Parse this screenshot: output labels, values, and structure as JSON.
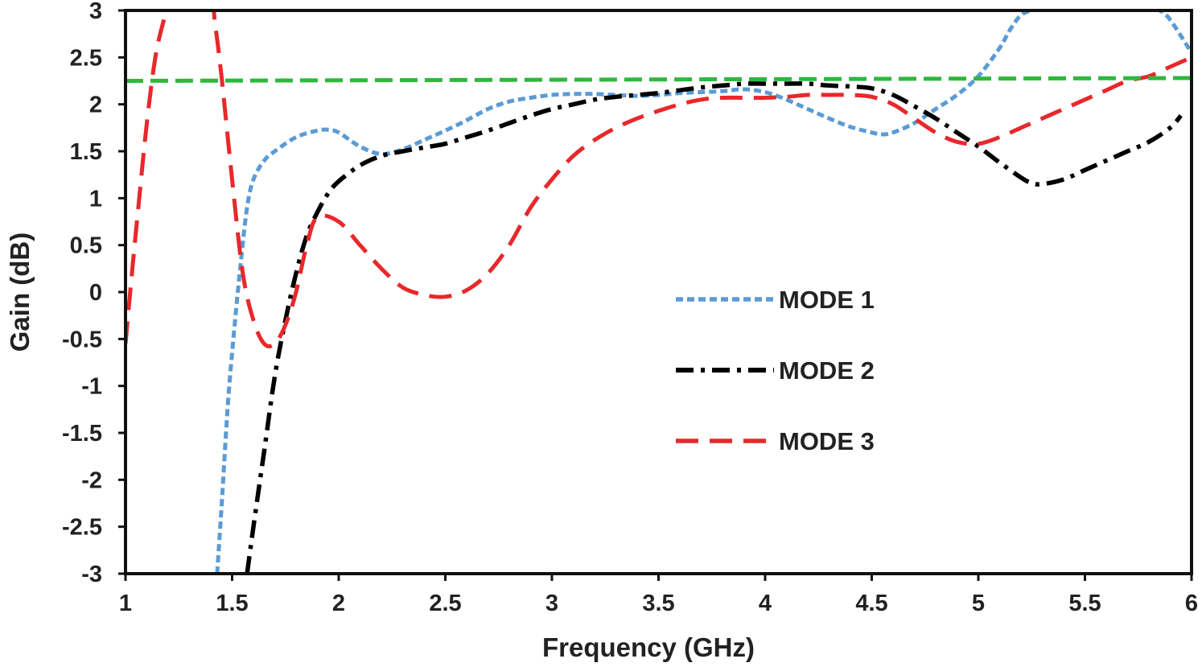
{
  "chart_data": {
    "type": "line",
    "title": "",
    "xlabel": "Frequency (GHz)",
    "ylabel": "Gain (dB)",
    "xlim": [
      1,
      6
    ],
    "ylim": [
      -3,
      3
    ],
    "xticks": [
      "1",
      "1.5",
      "2",
      "2.5",
      "3",
      "3.5",
      "4",
      "4.5",
      "5",
      "5.5",
      "6"
    ],
    "yticks": [
      "3",
      "2.5",
      "2",
      "1.5",
      "1",
      "0.5",
      "0",
      "-0.5",
      "-1",
      "-1.5",
      "-2",
      "-2.5",
      "-3"
    ],
    "grid": false,
    "legend_position": "center-right",
    "series": [
      {
        "name": "MODE 1",
        "color": "#5b9bd5",
        "dash": "dotted-dash",
        "x": [
          1.43,
          1.45,
          1.48,
          1.51,
          1.54,
          1.57,
          1.6,
          1.65,
          1.7,
          1.8,
          1.9,
          1.95,
          2.0,
          2.1,
          2.2,
          2.3,
          2.4,
          2.5,
          2.6,
          2.7,
          2.8,
          2.9,
          3.0,
          3.1,
          3.2,
          3.3,
          3.4,
          3.5,
          3.6,
          3.7,
          3.8,
          3.9,
          4.0,
          4.1,
          4.2,
          4.3,
          4.4,
          4.5,
          4.55,
          4.6,
          4.7,
          4.8,
          4.9,
          5.0,
          5.1,
          5.15,
          5.2,
          5.25,
          5.3,
          5.4,
          5.5,
          5.6,
          5.7,
          5.8,
          5.85,
          5.9,
          6.0
        ],
        "y": [
          -3.0,
          -2.3,
          -1.2,
          -0.4,
          0.3,
          0.9,
          1.2,
          1.4,
          1.5,
          1.65,
          1.72,
          1.73,
          1.7,
          1.55,
          1.47,
          1.52,
          1.62,
          1.72,
          1.83,
          1.95,
          2.03,
          2.07,
          2.1,
          2.11,
          2.11,
          2.1,
          2.09,
          2.1,
          2.12,
          2.13,
          2.14,
          2.16,
          2.13,
          2.05,
          1.95,
          1.85,
          1.76,
          1.7,
          1.68,
          1.7,
          1.8,
          1.95,
          2.1,
          2.3,
          2.6,
          2.8,
          2.95,
          3.0,
          3.02,
          3.02,
          3.02,
          3.02,
          3.02,
          3.02,
          3.0,
          2.9,
          2.55
        ]
      },
      {
        "name": "MODE 2",
        "color": "#000000",
        "dash": "dash-dot",
        "x": [
          1.57,
          1.6,
          1.65,
          1.7,
          1.75,
          1.8,
          1.85,
          1.9,
          1.95,
          2.0,
          2.1,
          2.2,
          2.3,
          2.4,
          2.5,
          2.6,
          2.7,
          2.8,
          2.9,
          3.0,
          3.1,
          3.2,
          3.3,
          3.4,
          3.5,
          3.6,
          3.7,
          3.8,
          3.9,
          4.0,
          4.1,
          4.2,
          4.3,
          4.4,
          4.5,
          4.6,
          4.7,
          4.8,
          4.9,
          5.0,
          5.1,
          5.2,
          5.25,
          5.3,
          5.4,
          5.5,
          5.6,
          5.7,
          5.8,
          5.9,
          5.95
        ],
        "y": [
          -3.0,
          -2.5,
          -1.7,
          -0.9,
          -0.3,
          0.2,
          0.6,
          0.85,
          1.05,
          1.18,
          1.35,
          1.45,
          1.5,
          1.54,
          1.58,
          1.65,
          1.72,
          1.8,
          1.88,
          1.95,
          2.0,
          2.05,
          2.08,
          2.1,
          2.12,
          2.15,
          2.18,
          2.2,
          2.22,
          2.22,
          2.22,
          2.22,
          2.2,
          2.19,
          2.17,
          2.1,
          1.98,
          1.85,
          1.7,
          1.55,
          1.38,
          1.22,
          1.16,
          1.15,
          1.2,
          1.3,
          1.4,
          1.5,
          1.6,
          1.75,
          1.88
        ]
      },
      {
        "name": "MODE 3",
        "color": "#e8282b",
        "dash": "long-dash",
        "x": [
          1.0,
          1.03,
          1.06,
          1.1,
          1.14,
          1.18,
          1.2,
          1.22,
          1.28,
          1.4,
          1.42,
          1.45,
          1.5,
          1.55,
          1.6,
          1.65,
          1.7,
          1.75,
          1.8,
          1.85,
          1.9,
          2.0,
          2.1,
          2.2,
          2.3,
          2.4,
          2.5,
          2.6,
          2.7,
          2.8,
          2.9,
          3.0,
          3.1,
          3.2,
          3.3,
          3.4,
          3.5,
          3.6,
          3.7,
          3.8,
          3.9,
          4.0,
          4.1,
          4.2,
          4.3,
          4.4,
          4.5,
          4.6,
          4.7,
          4.8,
          4.9,
          5.0,
          5.1,
          5.2,
          5.3,
          5.4,
          5.5,
          5.6,
          5.7,
          5.8,
          5.9,
          6.0
        ],
        "y": [
          -0.55,
          0.2,
          0.9,
          1.8,
          2.5,
          2.9,
          3.02,
          3.02,
          3.02,
          3.02,
          2.85,
          2.3,
          1.2,
          0.2,
          -0.3,
          -0.55,
          -0.55,
          -0.35,
          0.0,
          0.5,
          0.8,
          0.75,
          0.5,
          0.25,
          0.05,
          -0.03,
          -0.05,
          0.02,
          0.2,
          0.5,
          0.9,
          1.2,
          1.45,
          1.62,
          1.75,
          1.85,
          1.93,
          2.0,
          2.05,
          2.07,
          2.07,
          2.07,
          2.08,
          2.1,
          2.1,
          2.1,
          2.08,
          2.0,
          1.85,
          1.7,
          1.6,
          1.58,
          1.65,
          1.75,
          1.85,
          1.95,
          2.05,
          2.15,
          2.25,
          2.3,
          2.4,
          2.5
        ]
      },
      {
        "name": "",
        "color": "#2eb83c",
        "dash": "dashed",
        "x": [
          1.0,
          6.0
        ],
        "y": [
          2.25,
          2.28
        ]
      }
    ]
  },
  "legend": [
    {
      "label": "MODE 1",
      "color": "#5b9bd5",
      "dash": "dotted-dash"
    },
    {
      "label": "MODE 2",
      "color": "#000000",
      "dash": "dash-dot"
    },
    {
      "label": "MODE 3",
      "color": "#e8282b",
      "dash": "long-dash"
    }
  ]
}
